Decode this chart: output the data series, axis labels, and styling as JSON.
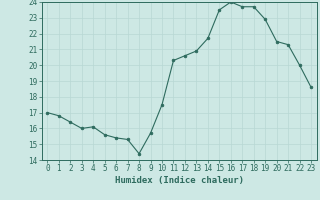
{
  "x": [
    0,
    1,
    2,
    3,
    4,
    5,
    6,
    7,
    8,
    9,
    10,
    11,
    12,
    13,
    14,
    15,
    16,
    17,
    18,
    19,
    20,
    21,
    22,
    23
  ],
  "y": [
    17.0,
    16.8,
    16.4,
    16.0,
    16.1,
    15.6,
    15.4,
    15.3,
    14.4,
    15.7,
    17.5,
    20.3,
    20.6,
    20.9,
    21.7,
    23.5,
    24.0,
    23.7,
    23.7,
    22.9,
    21.5,
    21.3,
    20.0,
    18.6
  ],
  "xlabel": "Humidex (Indice chaleur)",
  "ylim": [
    14,
    24
  ],
  "xlim": [
    -0.5,
    23.5
  ],
  "yticks": [
    14,
    15,
    16,
    17,
    18,
    19,
    20,
    21,
    22,
    23,
    24
  ],
  "xticks": [
    0,
    1,
    2,
    3,
    4,
    5,
    6,
    7,
    8,
    9,
    10,
    11,
    12,
    13,
    14,
    15,
    16,
    17,
    18,
    19,
    20,
    21,
    22,
    23
  ],
  "line_color": "#2e6b5e",
  "marker_color": "#2e6b5e",
  "bg_color": "#cde8e4",
  "grid_color": "#b8d8d4",
  "axis_color": "#2e6b5e",
  "xlabel_fontsize": 6.5,
  "tick_fontsize": 5.5
}
